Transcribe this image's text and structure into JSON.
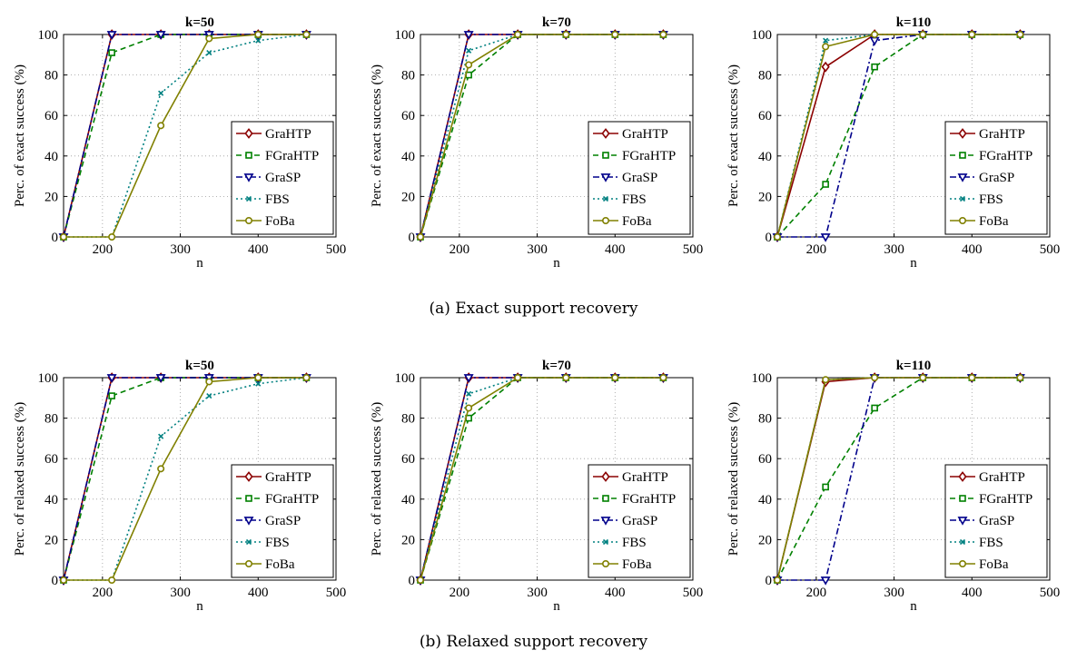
{
  "captions": {
    "a": "(a) Exact support recovery",
    "b": "(b) Relaxed support recovery"
  },
  "styles": {
    "GraHTP": {
      "color": "#8b0000",
      "dash": "solid",
      "marker": "diamond"
    },
    "FGraHTP": {
      "color": "#008000",
      "dash": "dashed",
      "marker": "square"
    },
    "GraSP": {
      "color": "#00008b",
      "dash": "dashdot",
      "marker": "triangle-down"
    },
    "FBS": {
      "color": "#008080",
      "dash": "dotted",
      "marker": "x"
    },
    "FoBa": {
      "color": "#808000",
      "dash": "solid",
      "marker": "circle"
    }
  },
  "chart_data": [
    {
      "type": "line",
      "title": "k=50",
      "xlabel": "n",
      "ylabel": "Perc. of exact success (%)",
      "xlim": [
        150,
        500
      ],
      "ylim": [
        0,
        100
      ],
      "xticks": [
        200,
        300,
        400,
        500
      ],
      "yticks": [
        0,
        20,
        40,
        60,
        80,
        100
      ],
      "grid": true,
      "legend": "lower-right",
      "x": [
        150,
        212,
        275,
        337,
        400,
        462
      ],
      "series": [
        {
          "name": "GraHTP",
          "values": [
            0,
            100,
            100,
            100,
            100,
            100
          ]
        },
        {
          "name": "FGraHTP",
          "values": [
            0,
            91,
            100,
            100,
            100,
            100
          ]
        },
        {
          "name": "GraSP",
          "values": [
            0,
            100,
            100,
            100,
            100,
            100
          ]
        },
        {
          "name": "FBS",
          "values": [
            0,
            0,
            71,
            91,
            97,
            100
          ]
        },
        {
          "name": "FoBa",
          "values": [
            0,
            0,
            55,
            98,
            100,
            100
          ]
        }
      ]
    },
    {
      "type": "line",
      "title": "k=70",
      "xlabel": "n",
      "ylabel": "Perc. of exact success (%)",
      "xlim": [
        150,
        500
      ],
      "ylim": [
        0,
        100
      ],
      "xticks": [
        200,
        300,
        400,
        500
      ],
      "yticks": [
        0,
        20,
        40,
        60,
        80,
        100
      ],
      "grid": true,
      "legend": "lower-right",
      "x": [
        150,
        212,
        275,
        337,
        400,
        462
      ],
      "series": [
        {
          "name": "GraHTP",
          "values": [
            0,
            100,
            100,
            100,
            100,
            100
          ]
        },
        {
          "name": "FGraHTP",
          "values": [
            0,
            80,
            100,
            100,
            100,
            100
          ]
        },
        {
          "name": "GraSP",
          "values": [
            0,
            100,
            100,
            100,
            100,
            100
          ]
        },
        {
          "name": "FBS",
          "values": [
            0,
            92,
            100,
            100,
            100,
            100
          ]
        },
        {
          "name": "FoBa",
          "values": [
            0,
            85,
            100,
            100,
            100,
            100
          ]
        }
      ]
    },
    {
      "type": "line",
      "title": "k=110",
      "xlabel": "n",
      "ylabel": "Perc. of exact success (%)",
      "xlim": [
        150,
        500
      ],
      "ylim": [
        0,
        100
      ],
      "xticks": [
        200,
        300,
        400,
        500
      ],
      "yticks": [
        0,
        20,
        40,
        60,
        80,
        100
      ],
      "grid": true,
      "legend": "lower-right",
      "x": [
        150,
        212,
        275,
        337,
        400,
        462
      ],
      "series": [
        {
          "name": "GraHTP",
          "values": [
            0,
            84,
            100,
            100,
            100,
            100
          ]
        },
        {
          "name": "FGraHTP",
          "values": [
            0,
            26,
            84,
            100,
            100,
            100
          ]
        },
        {
          "name": "GraSP",
          "values": [
            0,
            0,
            97,
            100,
            100,
            100
          ]
        },
        {
          "name": "FBS",
          "values": [
            0,
            97,
            100,
            100,
            100,
            100
          ]
        },
        {
          "name": "FoBa",
          "values": [
            0,
            94,
            100,
            100,
            100,
            100
          ]
        }
      ]
    },
    {
      "type": "line",
      "title": "k=50",
      "xlabel": "n",
      "ylabel": "Perc. of relaxed success (%)",
      "xlim": [
        150,
        500
      ],
      "ylim": [
        0,
        100
      ],
      "xticks": [
        200,
        300,
        400,
        500
      ],
      "yticks": [
        0,
        20,
        40,
        60,
        80,
        100
      ],
      "grid": true,
      "legend": "lower-right",
      "x": [
        150,
        212,
        275,
        337,
        400,
        462
      ],
      "series": [
        {
          "name": "GraHTP",
          "values": [
            0,
            100,
            100,
            100,
            100,
            100
          ]
        },
        {
          "name": "FGraHTP",
          "values": [
            0,
            91,
            100,
            100,
            100,
            100
          ]
        },
        {
          "name": "GraSP",
          "values": [
            0,
            100,
            100,
            100,
            100,
            100
          ]
        },
        {
          "name": "FBS",
          "values": [
            0,
            0,
            71,
            91,
            97,
            100
          ]
        },
        {
          "name": "FoBa",
          "values": [
            0,
            0,
            55,
            98,
            100,
            100
          ]
        }
      ]
    },
    {
      "type": "line",
      "title": "k=70",
      "xlabel": "n",
      "ylabel": "Perc. of relaxed success (%)",
      "xlim": [
        150,
        500
      ],
      "ylim": [
        0,
        100
      ],
      "xticks": [
        200,
        300,
        400,
        500
      ],
      "yticks": [
        0,
        20,
        40,
        60,
        80,
        100
      ],
      "grid": true,
      "legend": "lower-right",
      "x": [
        150,
        212,
        275,
        337,
        400,
        462
      ],
      "series": [
        {
          "name": "GraHTP",
          "values": [
            0,
            100,
            100,
            100,
            100,
            100
          ]
        },
        {
          "name": "FGraHTP",
          "values": [
            0,
            80,
            100,
            100,
            100,
            100
          ]
        },
        {
          "name": "GraSP",
          "values": [
            0,
            100,
            100,
            100,
            100,
            100
          ]
        },
        {
          "name": "FBS",
          "values": [
            0,
            92,
            100,
            100,
            100,
            100
          ]
        },
        {
          "name": "FoBa",
          "values": [
            0,
            85,
            100,
            100,
            100,
            100
          ]
        }
      ]
    },
    {
      "type": "line",
      "title": "k=110",
      "xlabel": "n",
      "ylabel": "Perc. of relaxed success (%)",
      "xlim": [
        150,
        500
      ],
      "ylim": [
        0,
        100
      ],
      "xticks": [
        200,
        300,
        400,
        500
      ],
      "yticks": [
        0,
        20,
        40,
        60,
        80,
        100
      ],
      "grid": true,
      "legend": "lower-right",
      "x": [
        150,
        212,
        275,
        337,
        400,
        462
      ],
      "series": [
        {
          "name": "GraHTP",
          "values": [
            0,
            98,
            100,
            100,
            100,
            100
          ]
        },
        {
          "name": "FGraHTP",
          "values": [
            0,
            46,
            85,
            100,
            100,
            100
          ]
        },
        {
          "name": "GraSP",
          "values": [
            0,
            0,
            100,
            100,
            100,
            100
          ]
        },
        {
          "name": "FBS",
          "values": [
            0,
            99,
            100,
            100,
            100,
            100
          ]
        },
        {
          "name": "FoBa",
          "values": [
            0,
            99,
            100,
            100,
            100,
            100
          ]
        }
      ]
    }
  ]
}
